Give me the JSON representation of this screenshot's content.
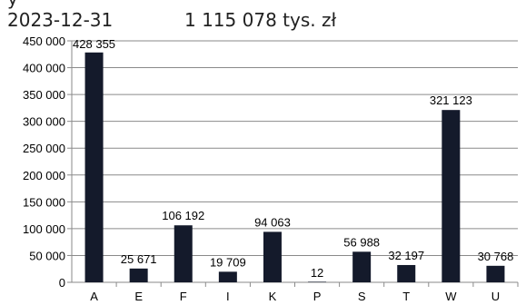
{
  "header": {
    "top_partial": "y",
    "date": "2023-12-31",
    "total": "1 115 078 tys. zł"
  },
  "chart_data": {
    "type": "bar",
    "categories": [
      "A",
      "E",
      "F",
      "I",
      "K",
      "P",
      "S",
      "T",
      "W",
      "U"
    ],
    "values": [
      428355,
      25671,
      106192,
      19709,
      94063,
      12,
      56988,
      32197,
      321123,
      30768
    ],
    "value_labels": [
      "428 355",
      "25 671",
      "106 192",
      "19 709",
      "94 063",
      "12",
      "56 988",
      "32 197",
      "321 123",
      "30 768"
    ],
    "yticks": [
      0,
      50000,
      100000,
      150000,
      200000,
      250000,
      300000,
      350000,
      400000,
      450000
    ],
    "ytick_labels": [
      "0",
      "50 000",
      "100 000",
      "150 000",
      "200 000",
      "250 000",
      "300 000",
      "350 000",
      "400 000",
      "450 000"
    ],
    "ylim": [
      0,
      450000
    ],
    "grid": true,
    "bar_color": "#141a2b",
    "grid_color": "#8a8a8a",
    "title": "",
    "xlabel": "",
    "ylabel": ""
  }
}
